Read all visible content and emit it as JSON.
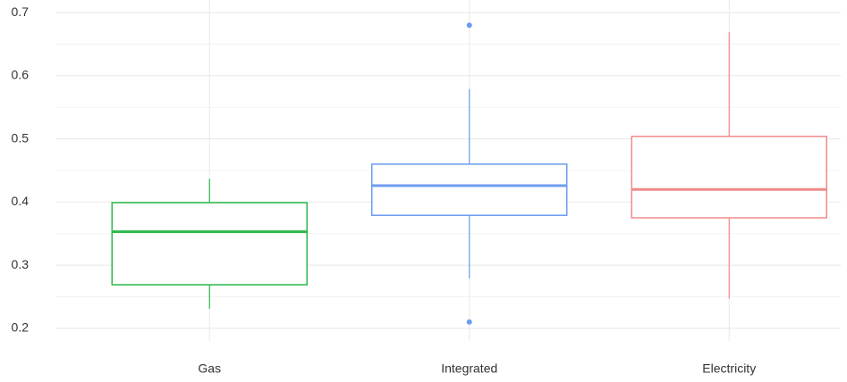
{
  "chart_data": {
    "type": "box",
    "categories": [
      "Gas",
      "Integrated",
      "Electricity"
    ],
    "colors": [
      "#2bb84a",
      "#6c9cf0",
      "#f08a8a"
    ],
    "boxes": [
      {
        "whislo": 0.231,
        "q1": 0.269,
        "med": 0.353,
        "q3": 0.399,
        "whishi": 0.437,
        "fliers": []
      },
      {
        "whislo": 0.279,
        "q1": 0.379,
        "med": 0.426,
        "q3": 0.46,
        "whishi": 0.579,
        "fliers": [
          0.68,
          0.21
        ]
      },
      {
        "whislo": 0.247,
        "q1": 0.375,
        "med": 0.42,
        "q3": 0.504,
        "whishi": 0.669,
        "fliers": []
      }
    ],
    "ylim": [
      0.18,
      0.72
    ],
    "yticks": [
      0.2,
      0.3,
      0.4,
      0.5,
      0.6,
      0.7
    ],
    "yminor": [
      0.25,
      0.35,
      0.45,
      0.55,
      0.65
    ],
    "grid": true
  }
}
